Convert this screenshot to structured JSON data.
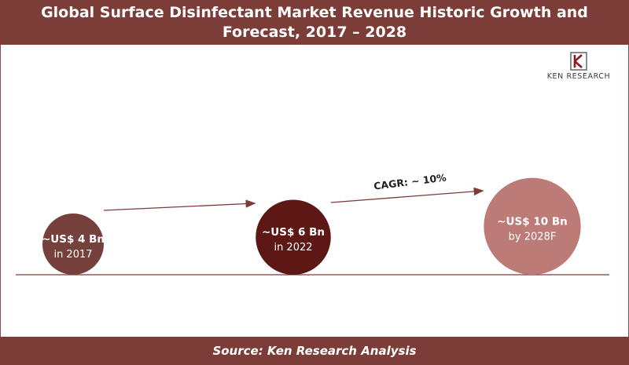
{
  "header": {
    "title": "Global Surface Disinfectant Market Revenue Historic Growth and Forecast, 2017 – 2028"
  },
  "logo": {
    "icon": "ken-research-logo-icon",
    "text": "KEN RESEARCH"
  },
  "footer": {
    "source": "Source: Ken Research Analysis"
  },
  "colors": {
    "header_bg": "#7c3c38",
    "bubble_2017": "#76403c",
    "bubble_2022": "#5d1715",
    "bubble_2028": "#bd7b78"
  },
  "chart_data": {
    "type": "bubble",
    "title": "Global Surface Disinfectant Market Revenue Historic Growth and Forecast, 2017 – 2028",
    "x": [
      "2017",
      "2022",
      "2028F"
    ],
    "values": [
      4,
      6,
      10
    ],
    "unit": "US$ Bn",
    "labels": [
      {
        "value": "~US$ 4 Bn",
        "sub": "in 2017"
      },
      {
        "value": "~US$ 6 Bn",
        "sub": "in 2022"
      },
      {
        "value": "~US$ 10 Bn",
        "sub": "by 2028F"
      }
    ],
    "annotation": "CAGR: ~ 10%"
  }
}
